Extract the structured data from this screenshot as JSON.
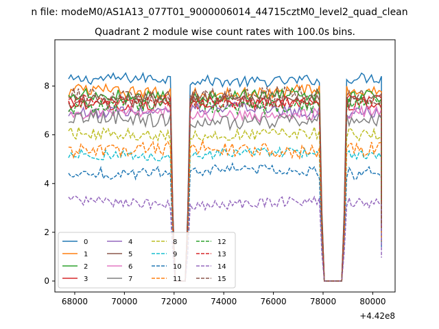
{
  "chart_data": {
    "type": "line",
    "suptitle": "n file: modeM0/AS1A13_077T01_9000006014_44715cztM0_level2_quad_clean",
    "title": "Quadrant 2 module wise count rates with 100.0s bins.",
    "xlabel": "",
    "ylabel": "",
    "x_offset_label": "+4.42e8",
    "xlim": [
      67200,
      80900
    ],
    "ylim": [
      -0.45,
      9.9
    ],
    "x_ticks": [
      68000,
      70000,
      72000,
      74000,
      76000,
      78000,
      80000
    ],
    "x_tick_labels": [
      "68000",
      "70000",
      "72000",
      "74000",
      "76000",
      "78000",
      "80000"
    ],
    "y_ticks": [
      0,
      2,
      4,
      6,
      8
    ],
    "y_tick_labels": [
      "0",
      "2",
      "4",
      "6",
      "8"
    ],
    "legend_position": "lower-left",
    "gaps": [
      [
        71950,
        72500
      ],
      [
        77950,
        78800
      ]
    ],
    "segments_x": [
      [
        67750,
        72150
      ],
      [
        72350,
        78100
      ],
      [
        78600,
        80350
      ]
    ],
    "series": [
      {
        "name": "0",
        "color": "#1f77b4",
        "dash": "solid",
        "level": 8.25,
        "noise": 0.22
      },
      {
        "name": "1",
        "color": "#ff7f0e",
        "dash": "solid",
        "level": 7.75,
        "noise": 0.25
      },
      {
        "name": "2",
        "color": "#2ca02c",
        "dash": "solid",
        "level": 7.6,
        "noise": 0.25
      },
      {
        "name": "3",
        "color": "#d62728",
        "dash": "solid",
        "level": 7.3,
        "noise": 0.25
      },
      {
        "name": "4",
        "color": "#9467bd",
        "dash": "solid",
        "level": 7.0,
        "noise": 0.25
      },
      {
        "name": "5",
        "color": "#8c564b",
        "dash": "solid",
        "level": 7.4,
        "noise": 0.3
      },
      {
        "name": "6",
        "color": "#e377c2",
        "dash": "solid",
        "level": 6.85,
        "noise": 0.25
      },
      {
        "name": "7",
        "color": "#7f7f7f",
        "dash": "solid",
        "level": 6.6,
        "noise": 0.3
      },
      {
        "name": "8",
        "color": "#bcbd22",
        "dash": "dashed",
        "level": 6.0,
        "noise": 0.25
      },
      {
        "name": "9",
        "color": "#17becf",
        "dash": "dashed",
        "level": 5.2,
        "noise": 0.2
      },
      {
        "name": "10",
        "color": "#1f77b4",
        "dash": "dashed",
        "level": 4.5,
        "noise": 0.25
      },
      {
        "name": "11",
        "color": "#ff7f0e",
        "dash": "dashed",
        "level": 5.4,
        "noise": 0.3
      },
      {
        "name": "12",
        "color": "#2ca02c",
        "dash": "dashed",
        "level": 7.2,
        "noise": 0.3
      },
      {
        "name": "13",
        "color": "#d62728",
        "dash": "dashed",
        "level": 7.35,
        "noise": 0.25
      },
      {
        "name": "14",
        "color": "#9467bd",
        "dash": "dashed",
        "level": 3.2,
        "noise": 0.2
      },
      {
        "name": "15",
        "color": "#8c564b",
        "dash": "dashed",
        "level": 7.6,
        "noise": 0.3
      }
    ]
  }
}
